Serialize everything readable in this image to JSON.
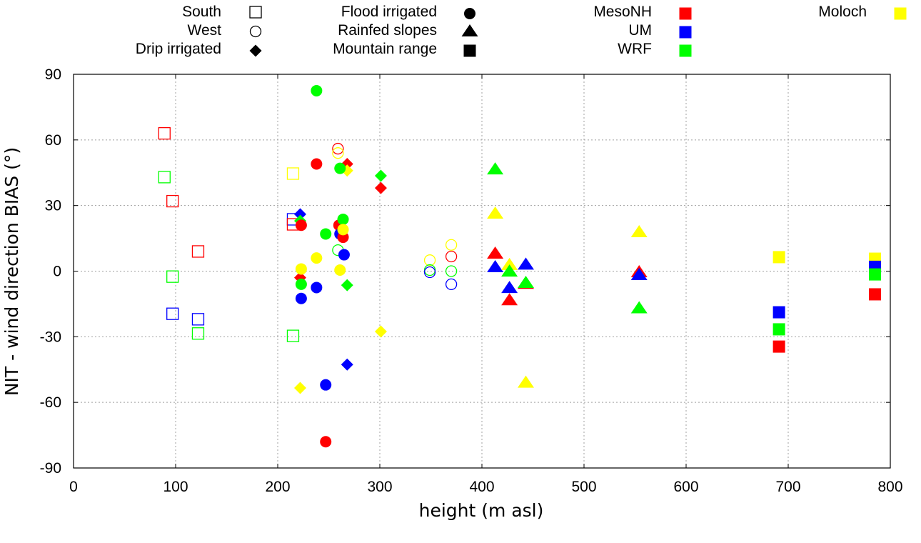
{
  "chart_data": {
    "type": "scatter",
    "title": "",
    "xlabel": "height (m asl)",
    "ylabel": "NIT - wind direction BIAS (°)",
    "xlim": [
      0,
      800
    ],
    "ylim": [
      -90,
      90
    ],
    "xticks": [
      0,
      100,
      200,
      300,
      400,
      500,
      600,
      700,
      800
    ],
    "yticks": [
      -90,
      -60,
      -30,
      0,
      30,
      60,
      90
    ],
    "grid": true,
    "legend_placement": "top-outside",
    "site_legend": [
      {
        "name": "South",
        "marker": "square-open"
      },
      {
        "name": "West",
        "marker": "circle-open"
      },
      {
        "name": "Drip irrigated",
        "marker": "diamond"
      },
      {
        "name": "Flood irrigated",
        "marker": "circle"
      },
      {
        "name": "Rainfed slopes",
        "marker": "triangle"
      },
      {
        "name": "Mountain range",
        "marker": "square"
      }
    ],
    "model_legend": [
      {
        "name": "MesoNH",
        "color": "#ff0000"
      },
      {
        "name": "UM",
        "color": "#0000ff"
      },
      {
        "name": "WRF",
        "color": "#00ff00"
      },
      {
        "name": "Moloch",
        "color": "#ffff00"
      }
    ],
    "series": [
      {
        "site": "South",
        "marker": "square-open",
        "points": [
          {
            "model": "MesoNH",
            "x": 89,
            "y": 63
          },
          {
            "model": "WRF",
            "x": 89,
            "y": 43
          },
          {
            "model": "MesoNH",
            "x": 97,
            "y": 32
          },
          {
            "model": "WRF",
            "x": 97,
            "y": -2.5
          },
          {
            "model": "UM",
            "x": 97,
            "y": -19.5
          },
          {
            "model": "MesoNH",
            "x": 122,
            "y": 9
          },
          {
            "model": "UM",
            "x": 122,
            "y": -22
          },
          {
            "model": "WRF",
            "x": 122,
            "y": -28.5
          },
          {
            "model": "Moloch",
            "x": 215,
            "y": 44.6
          },
          {
            "model": "UM",
            "x": 215,
            "y": 23.7
          },
          {
            "model": "MesoNH",
            "x": 215,
            "y": 21.4
          },
          {
            "model": "WRF",
            "x": 215,
            "y": -29.6
          }
        ]
      },
      {
        "site": "West",
        "marker": "circle-open",
        "points": [
          {
            "model": "MesoNH",
            "x": 259,
            "y": 56
          },
          {
            "model": "Moloch",
            "x": 259,
            "y": 54
          },
          {
            "model": "WRF",
            "x": 259,
            "y": 9.6
          },
          {
            "model": "Moloch",
            "x": 349,
            "y": 5
          },
          {
            "model": "WRF",
            "x": 349,
            "y": 0.5
          },
          {
            "model": "UM",
            "x": 349,
            "y": -0.5
          },
          {
            "model": "Moloch",
            "x": 370,
            "y": 12
          },
          {
            "model": "MesoNH",
            "x": 370,
            "y": 6.7
          },
          {
            "model": "WRF",
            "x": 370,
            "y": 0
          },
          {
            "model": "UM",
            "x": 370,
            "y": -6
          }
        ]
      },
      {
        "site": "Drip irrigated",
        "marker": "diamond",
        "points": [
          {
            "model": "UM",
            "x": 222,
            "y": 26
          },
          {
            "model": "WRF",
            "x": 222,
            "y": 23
          },
          {
            "model": "MesoNH",
            "x": 222,
            "y": -3
          },
          {
            "model": "Moloch",
            "x": 222,
            "y": -53.4
          },
          {
            "model": "MesoNH",
            "x": 268,
            "y": 49
          },
          {
            "model": "Moloch",
            "x": 268,
            "y": 46
          },
          {
            "model": "WRF",
            "x": 268,
            "y": -6.4
          },
          {
            "model": "UM",
            "x": 268,
            "y": -42.7
          },
          {
            "model": "WRF",
            "x": 301,
            "y": 43.6
          },
          {
            "model": "MesoNH",
            "x": 301,
            "y": 38
          },
          {
            "model": "Moloch",
            "x": 301,
            "y": -27.6
          }
        ]
      },
      {
        "site": "Flood irrigated",
        "marker": "circle",
        "points": [
          {
            "model": "MesoNH",
            "x": 223,
            "y": 21
          },
          {
            "model": "Moloch",
            "x": 223,
            "y": 1
          },
          {
            "model": "WRF",
            "x": 223,
            "y": -6
          },
          {
            "model": "UM",
            "x": 223,
            "y": -12.5
          },
          {
            "model": "WRF",
            "x": 238,
            "y": 82.5
          },
          {
            "model": "MesoNH",
            "x": 238,
            "y": 49
          },
          {
            "model": "Moloch",
            "x": 238,
            "y": 6
          },
          {
            "model": "UM",
            "x": 238,
            "y": -7.5
          },
          {
            "model": "WRF",
            "x": 247,
            "y": 17
          },
          {
            "model": "UM",
            "x": 247,
            "y": -52
          },
          {
            "model": "MesoNH",
            "x": 247,
            "y": -78
          },
          {
            "model": "WRF",
            "x": 261,
            "y": 47
          },
          {
            "model": "MesoNH",
            "x": 260,
            "y": 21
          },
          {
            "model": "UM",
            "x": 261,
            "y": 17
          },
          {
            "model": "Moloch",
            "x": 261,
            "y": 0.5
          },
          {
            "model": "MesoNH",
            "x": 264,
            "y": 15.5
          },
          {
            "model": "WRF",
            "x": 264,
            "y": 23.7
          },
          {
            "model": "Moloch",
            "x": 264,
            "y": 19
          },
          {
            "model": "UM",
            "x": 265,
            "y": 7.5
          }
        ]
      },
      {
        "site": "Rainfed slopes",
        "marker": "triangle",
        "points": [
          {
            "model": "WRF",
            "x": 413,
            "y": 46.5
          },
          {
            "model": "Moloch",
            "x": 413,
            "y": 26.3
          },
          {
            "model": "MesoNH",
            "x": 413,
            "y": 8
          },
          {
            "model": "UM",
            "x": 413,
            "y": 1.8
          },
          {
            "model": "Moloch",
            "x": 427,
            "y": 2.8
          },
          {
            "model": "WRF",
            "x": 427,
            "y": -0.2
          },
          {
            "model": "UM",
            "x": 427,
            "y": -7.7
          },
          {
            "model": "MesoNH",
            "x": 427,
            "y": -13.3
          },
          {
            "model": "UM",
            "x": 443,
            "y": 3
          },
          {
            "model": "MesoNH",
            "x": 443,
            "y": -5.8
          },
          {
            "model": "WRF",
            "x": 443,
            "y": -5.4
          },
          {
            "model": "Moloch",
            "x": 443,
            "y": -51
          },
          {
            "model": "Moloch",
            "x": 554,
            "y": 17.8
          },
          {
            "model": "MesoNH",
            "x": 554,
            "y": -0.5
          },
          {
            "model": "UM",
            "x": 554,
            "y": -1.8
          },
          {
            "model": "WRF",
            "x": 554,
            "y": -17
          }
        ]
      },
      {
        "site": "Mountain range",
        "marker": "square",
        "points": [
          {
            "model": "Moloch",
            "x": 691,
            "y": 6.4
          },
          {
            "model": "UM",
            "x": 691,
            "y": -18.8
          },
          {
            "model": "WRF",
            "x": 691,
            "y": -26.6
          },
          {
            "model": "MesoNH",
            "x": 691,
            "y": -34.5
          },
          {
            "model": "Moloch",
            "x": 785,
            "y": 5.7
          },
          {
            "model": "UM",
            "x": 785,
            "y": 2
          },
          {
            "model": "WRF",
            "x": 785,
            "y": -1.5
          },
          {
            "model": "MesoNH",
            "x": 785,
            "y": -10.6
          }
        ]
      }
    ]
  }
}
